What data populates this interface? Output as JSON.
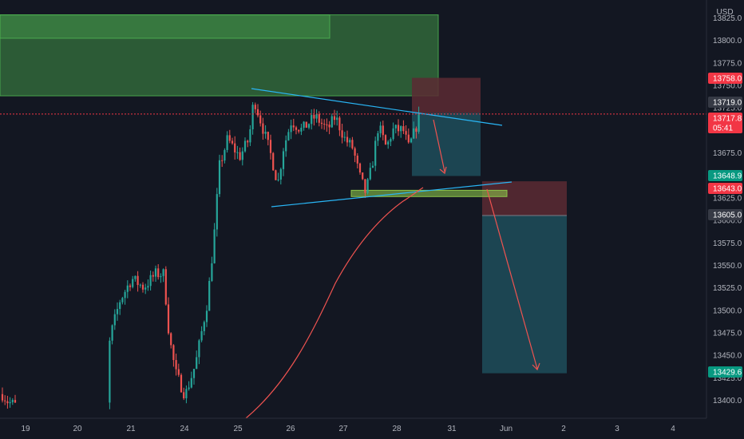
{
  "chart_data": {
    "type": "candlestick",
    "title": "",
    "currency": "USD",
    "xlabel": "",
    "ylabel": "",
    "ylim": [
      13387,
      13835
    ],
    "grid": false,
    "x_tick_labels": [
      "19",
      "20",
      "21",
      "24",
      "25",
      "26",
      "27",
      "28",
      "31",
      "Jun",
      "2",
      "3",
      "4"
    ],
    "y_tick_labels": [
      "13825.0",
      "13800.0",
      "13775.0",
      "13750.0",
      "13725.0",
      "13700.0",
      "13675.0",
      "13650.0",
      "13625.0",
      "13600.0",
      "13575.0",
      "13550.0",
      "13525.0",
      "13500.0",
      "13475.0",
      "13450.0",
      "13425.0",
      "13400.0"
    ],
    "price_badges": [
      {
        "label": "13758.0",
        "value": 13758.0,
        "color": "#f23645"
      },
      {
        "label": "13719.0",
        "value": 13719.0,
        "color": "#363a45"
      },
      {
        "label": "13717.8",
        "sublabel": "05:41",
        "value": 13717.8,
        "color": "#f23645"
      },
      {
        "label": "13648.9",
        "value": 13648.9,
        "color": "#089981"
      },
      {
        "label": "13643.0",
        "value": 13643.0,
        "color": "#f23645"
      },
      {
        "label": "13605.0",
        "value": 13605.0,
        "color": "#363a45"
      },
      {
        "label": "13429.6",
        "value": 13429.6,
        "color": "#089981"
      }
    ],
    "current_price": 13717.8,
    "supply_zone": {
      "top": 13828,
      "bottom": 13738,
      "inner_top": 13828,
      "inner_bottom": 13802
    },
    "demand_zone": {
      "top": 13633,
      "bottom": 13626
    },
    "trade_1": {
      "entry": 13719.0,
      "stop": 13758.0,
      "target": 13648.9
    },
    "trade_2": {
      "entry": 13605.0,
      "stop": 13643.0,
      "target": 13429.6
    },
    "triangle_upper_line": [
      [
        13745,
        13700
      ]
    ],
    "triangle_lower_line": [
      [
        13613,
        13640
      ]
    ],
    "colors": {
      "background": "#131722",
      "up": "#26a69a",
      "down": "#ef5350",
      "supply_fill": "#4caf50",
      "trendline": "#29b6f6",
      "ma_line": "#ef5350",
      "target_fill": "#1e4e5a",
      "stop_fill": "#5c2a33"
    }
  }
}
